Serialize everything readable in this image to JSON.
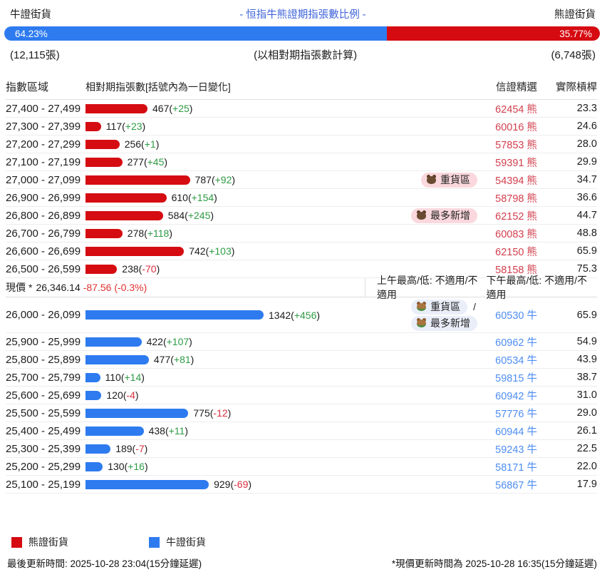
{
  "page": {
    "top": {
      "bull_label": "牛證街貨",
      "title": "- 恒指牛熊證期指張數比例 -",
      "bear_label": "熊證街貨",
      "bull_pct_display": "64.23%",
      "bear_pct_display": "35.77%",
      "bull_pct": 64.23,
      "bull_count": "(12,115張)",
      "calc_note": "(以相對期指張數計算)",
      "bear_count": "(6,748張)"
    },
    "table_headers": {
      "range": "指數區域",
      "contracts": "相對期指張數[括號內為一日變化]",
      "code": "信證精選",
      "leverage": "實際槓桿"
    },
    "spot_row": {
      "label": "現價",
      "asterisk": "*",
      "price": "26,346.14",
      "change": "-87.56 (-0.3%)",
      "am": "上午最高/低: 不適用/不適用",
      "pm": "下午最高/低: 不適用/不適用"
    },
    "value_open": "(",
    "value_close": ")",
    "badge_separator": "/",
    "legend": [
      {
        "label": "熊證街貨",
        "color": "#d50b11"
      },
      {
        "label": "牛證街貨",
        "color": "#2e7bf0"
      }
    ],
    "footer": {
      "left": "最後更新時間: 2025-10-28 23:04(15分鐘延遲)",
      "right": "*現價更新時間為 2025-10-28 16:35(15分鐘延遲)"
    }
  },
  "chart_data": {
    "type": "bar",
    "orientation": "horizontal",
    "title": "恒指牛熊證期指張數比例",
    "ratio": {
      "bull_pct": 64.23,
      "bear_pct": 35.77,
      "bull_contracts": 12115,
      "bear_contracts": 6748
    },
    "spot": {
      "price": 26346.14,
      "change": -87.56,
      "change_pct_display": "-0.3%"
    },
    "xlabel": "相對期指張數[括號內為一日變化]",
    "ylabel": "指數區域",
    "series": [
      {
        "name": "熊證街貨",
        "side": "bear",
        "color": "#d50b11",
        "rows": [
          {
            "range": "27,400 - 27,499",
            "value": 467,
            "change": "+25",
            "code": "62454 熊",
            "leverage": "23.3",
            "badges": []
          },
          {
            "range": "27,300 - 27,399",
            "value": 117,
            "change": "+23",
            "code": "60016 熊",
            "leverage": "24.6",
            "badges": []
          },
          {
            "range": "27,200 - 27,299",
            "value": 256,
            "change": "+1",
            "code": "57853 熊",
            "leverage": "28.0",
            "badges": []
          },
          {
            "range": "27,100 - 27,199",
            "value": 277,
            "change": "+45",
            "code": "59391 熊",
            "leverage": "29.9",
            "badges": []
          },
          {
            "range": "27,000 - 27,099",
            "value": 787,
            "change": "+92",
            "code": "54394 熊",
            "leverage": "34.7",
            "badges": [
              {
                "type": "heavy",
                "label": "重貨區"
              }
            ]
          },
          {
            "range": "26,900 - 26,999",
            "value": 610,
            "change": "+154",
            "code": "58798 熊",
            "leverage": "36.6",
            "badges": []
          },
          {
            "range": "26,800 - 26,899",
            "value": 584,
            "change": "+245",
            "code": "62152 熊",
            "leverage": "44.7",
            "badges": [
              {
                "type": "most_new",
                "label": "最多新增"
              }
            ]
          },
          {
            "range": "26,700 - 26,799",
            "value": 278,
            "change": "+118",
            "code": "60083 熊",
            "leverage": "48.8",
            "badges": []
          },
          {
            "range": "26,600 - 26,699",
            "value": 742,
            "change": "+103",
            "code": "62150 熊",
            "leverage": "65.9",
            "badges": []
          },
          {
            "range": "26,500 - 26,599",
            "value": 238,
            "change": "-70",
            "code": "58158 熊",
            "leverage": "75.3",
            "badges": []
          }
        ]
      },
      {
        "name": "牛證街貨",
        "side": "bull",
        "color": "#2e7bf0",
        "rows": [
          {
            "range": "26,000 - 26,099",
            "value": 1342,
            "change": "+456",
            "code": "60530 牛",
            "leverage": "65.9",
            "badges": [
              {
                "type": "heavy",
                "label": "重貨區"
              },
              {
                "type": "most_new",
                "label": "最多新增"
              }
            ]
          },
          {
            "range": "25,900 - 25,999",
            "value": 422,
            "change": "+107",
            "code": "60962 牛",
            "leverage": "54.9",
            "badges": []
          },
          {
            "range": "25,800 - 25,899",
            "value": 477,
            "change": "+81",
            "code": "60534 牛",
            "leverage": "43.9",
            "badges": []
          },
          {
            "range": "25,700 - 25,799",
            "value": 110,
            "change": "+14",
            "code": "59815 牛",
            "leverage": "38.7",
            "badges": []
          },
          {
            "range": "25,600 - 25,699",
            "value": 120,
            "change": "-4",
            "code": "60942 牛",
            "leverage": "31.0",
            "badges": []
          },
          {
            "range": "25,500 - 25,599",
            "value": 775,
            "change": "-12",
            "code": "57776 牛",
            "leverage": "29.0",
            "badges": []
          },
          {
            "range": "25,400 - 25,499",
            "value": 438,
            "change": "+11",
            "code": "60944 牛",
            "leverage": "26.1",
            "badges": []
          },
          {
            "range": "25,300 - 25,399",
            "value": 189,
            "change": "-7",
            "code": "59243 牛",
            "leverage": "22.5",
            "badges": []
          },
          {
            "range": "25,200 - 25,299",
            "value": 130,
            "change": "+16",
            "code": "58171 牛",
            "leverage": "22.0",
            "badges": []
          },
          {
            "range": "25,100 - 25,199",
            "value": 929,
            "change": "-69",
            "code": "56867 牛",
            "leverage": "17.9",
            "badges": []
          }
        ]
      }
    ]
  }
}
